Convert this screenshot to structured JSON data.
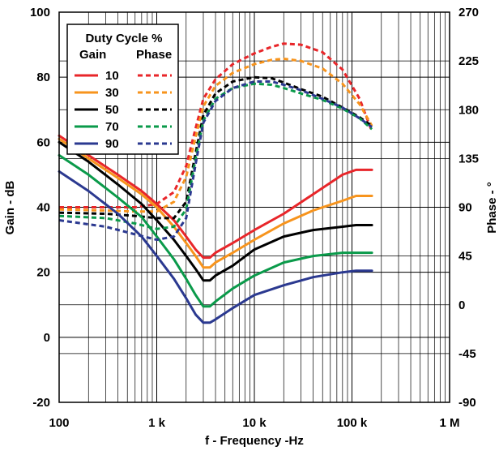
{
  "chart_data": {
    "type": "line",
    "xlabel": "f - Frequency -Hz",
    "ylabel_left": "Gain - dB",
    "ylabel_right": "Phase - °",
    "x_scale": "log",
    "xlim": [
      100,
      1000000
    ],
    "ylim_left": [
      -20,
      100
    ],
    "ylim_right": [
      -90,
      270
    ],
    "x_ticks": [
      {
        "v": 100,
        "label": "100"
      },
      {
        "v": 1000,
        "label": "1 k"
      },
      {
        "v": 10000,
        "label": "10 k"
      },
      {
        "v": 100000,
        "label": "100 k"
      },
      {
        "v": 1000000,
        "label": "1 M"
      }
    ],
    "y_ticks_left": [
      {
        "v": -20,
        "label": "-20"
      },
      {
        "v": 0,
        "label": "0"
      },
      {
        "v": 20,
        "label": "20"
      },
      {
        "v": 40,
        "label": "40"
      },
      {
        "v": 60,
        "label": "60"
      },
      {
        "v": 80,
        "label": "80"
      },
      {
        "v": 100,
        "label": "100"
      }
    ],
    "y_ticks_right": [
      {
        "v": -90,
        "label": "-90"
      },
      {
        "v": -45,
        "label": "-45"
      },
      {
        "v": 0,
        "label": "0"
      },
      {
        "v": 45,
        "label": "45"
      },
      {
        "v": 90,
        "label": "90"
      },
      {
        "v": 135,
        "label": "135"
      },
      {
        "v": 180,
        "label": "180"
      },
      {
        "v": 225,
        "label": "225"
      },
      {
        "v": 270,
        "label": "270"
      }
    ],
    "grid": true,
    "legend": {
      "title": "Duty Cycle %",
      "col_gain": "Gain",
      "col_phase": "Phase",
      "placement": "top-left"
    },
    "series": [
      {
        "name": "10",
        "color": "#e8262a",
        "gain": [
          [
            100,
            62
          ],
          [
            200,
            56
          ],
          [
            400,
            50
          ],
          [
            700,
            45
          ],
          [
            1000,
            41
          ],
          [
            1500,
            36
          ],
          [
            2000,
            31
          ],
          [
            2500,
            27
          ],
          [
            3000,
            24.5
          ],
          [
            3500,
            24.5
          ],
          [
            4000,
            26
          ],
          [
            6000,
            29
          ],
          [
            10000,
            33
          ],
          [
            20000,
            38
          ],
          [
            40000,
            44
          ],
          [
            80000,
            50
          ],
          [
            110000,
            51.5
          ],
          [
            160000,
            51.5
          ]
        ],
        "phase": [
          [
            100,
            90
          ],
          [
            300,
            90
          ],
          [
            600,
            90
          ],
          [
            1000,
            93
          ],
          [
            1500,
            104
          ],
          [
            2000,
            128
          ],
          [
            2500,
            163
          ],
          [
            3000,
            190
          ],
          [
            4000,
            208
          ],
          [
            6000,
            222
          ],
          [
            10000,
            232
          ],
          [
            15000,
            238
          ],
          [
            20000,
            241
          ],
          [
            30000,
            240
          ],
          [
            50000,
            233
          ],
          [
            80000,
            217
          ],
          [
            120000,
            190
          ],
          [
            160000,
            160
          ]
        ]
      },
      {
        "name": "30",
        "color": "#f7941d",
        "gain": [
          [
            100,
            61
          ],
          [
            200,
            55
          ],
          [
            400,
            49
          ],
          [
            700,
            44
          ],
          [
            1000,
            40
          ],
          [
            1500,
            34
          ],
          [
            2000,
            29
          ],
          [
            2500,
            25
          ],
          [
            3000,
            21.5
          ],
          [
            3500,
            21.5
          ],
          [
            4000,
            23
          ],
          [
            6000,
            26
          ],
          [
            10000,
            30
          ],
          [
            20000,
            35
          ],
          [
            40000,
            39
          ],
          [
            80000,
            42
          ],
          [
            110000,
            43.5
          ],
          [
            160000,
            43.5
          ]
        ],
        "phase": [
          [
            100,
            88
          ],
          [
            300,
            87
          ],
          [
            600,
            86
          ],
          [
            1000,
            86
          ],
          [
            1500,
            95
          ],
          [
            2000,
            118
          ],
          [
            2500,
            155
          ],
          [
            3000,
            183
          ],
          [
            4000,
            202
          ],
          [
            6000,
            214
          ],
          [
            10000,
            222
          ],
          [
            15000,
            226
          ],
          [
            20000,
            227
          ],
          [
            30000,
            225
          ],
          [
            50000,
            218
          ],
          [
            80000,
            204
          ],
          [
            120000,
            185
          ],
          [
            160000,
            165
          ]
        ]
      },
      {
        "name": "50",
        "color": "#000000",
        "gain": [
          [
            100,
            60
          ],
          [
            200,
            54
          ],
          [
            400,
            47
          ],
          [
            700,
            41
          ],
          [
            1000,
            36
          ],
          [
            1500,
            30
          ],
          [
            2000,
            25
          ],
          [
            2500,
            21
          ],
          [
            3000,
            17.5
          ],
          [
            3500,
            17.5
          ],
          [
            4000,
            19
          ],
          [
            6000,
            22
          ],
          [
            10000,
            27
          ],
          [
            20000,
            31
          ],
          [
            40000,
            33
          ],
          [
            80000,
            34
          ],
          [
            110000,
            34.5
          ],
          [
            160000,
            34.5
          ]
        ],
        "phase": [
          [
            100,
            85
          ],
          [
            300,
            84
          ],
          [
            600,
            82
          ],
          [
            1000,
            80
          ],
          [
            1500,
            80
          ],
          [
            2000,
            95
          ],
          [
            2500,
            140
          ],
          [
            3000,
            175
          ],
          [
            4000,
            195
          ],
          [
            6000,
            206
          ],
          [
            10000,
            210
          ],
          [
            15000,
            209
          ],
          [
            20000,
            205
          ],
          [
            30000,
            199
          ],
          [
            50000,
            192
          ],
          [
            80000,
            182
          ],
          [
            120000,
            173
          ],
          [
            160000,
            165
          ]
        ]
      },
      {
        "name": "70",
        "color": "#0a9a4a",
        "gain": [
          [
            100,
            56
          ],
          [
            200,
            50
          ],
          [
            400,
            43
          ],
          [
            700,
            37
          ],
          [
            1000,
            31
          ],
          [
            1500,
            24
          ],
          [
            2000,
            18
          ],
          [
            2500,
            13
          ],
          [
            3000,
            9.5
          ],
          [
            3500,
            9.5
          ],
          [
            4000,
            11
          ],
          [
            6000,
            15
          ],
          [
            10000,
            19
          ],
          [
            20000,
            23
          ],
          [
            40000,
            25
          ],
          [
            80000,
            26
          ],
          [
            110000,
            26
          ],
          [
            160000,
            26
          ]
        ],
        "phase": [
          [
            100,
            82
          ],
          [
            300,
            80
          ],
          [
            600,
            75
          ],
          [
            1000,
            70
          ],
          [
            1500,
            72
          ],
          [
            2000,
            88
          ],
          [
            2500,
            135
          ],
          [
            3000,
            170
          ],
          [
            4000,
            190
          ],
          [
            6000,
            200
          ],
          [
            10000,
            204
          ],
          [
            15000,
            203
          ],
          [
            20000,
            200
          ],
          [
            30000,
            195
          ],
          [
            50000,
            189
          ],
          [
            80000,
            181
          ],
          [
            120000,
            172
          ],
          [
            160000,
            162
          ]
        ]
      },
      {
        "name": "90",
        "color": "#2b3990",
        "gain": [
          [
            100,
            51
          ],
          [
            200,
            45
          ],
          [
            400,
            38
          ],
          [
            700,
            31
          ],
          [
            1000,
            25
          ],
          [
            1500,
            18
          ],
          [
            2000,
            12
          ],
          [
            2500,
            7
          ],
          [
            3000,
            4.5
          ],
          [
            3500,
            4.5
          ],
          [
            4000,
            5.5
          ],
          [
            6000,
            9
          ],
          [
            10000,
            13
          ],
          [
            20000,
            16
          ],
          [
            40000,
            18.5
          ],
          [
            80000,
            20
          ],
          [
            110000,
            20.5
          ],
          [
            160000,
            20.5
          ]
        ],
        "phase": [
          [
            100,
            78
          ],
          [
            300,
            72
          ],
          [
            600,
            65
          ],
          [
            1000,
            60
          ],
          [
            1500,
            63
          ],
          [
            2000,
            80
          ],
          [
            2500,
            130
          ],
          [
            3000,
            168
          ],
          [
            4000,
            188
          ],
          [
            6000,
            200
          ],
          [
            10000,
            206
          ],
          [
            15000,
            206
          ],
          [
            20000,
            203
          ],
          [
            30000,
            198
          ],
          [
            50000,
            190
          ],
          [
            80000,
            182
          ],
          [
            120000,
            172
          ],
          [
            160000,
            164
          ]
        ]
      }
    ]
  }
}
